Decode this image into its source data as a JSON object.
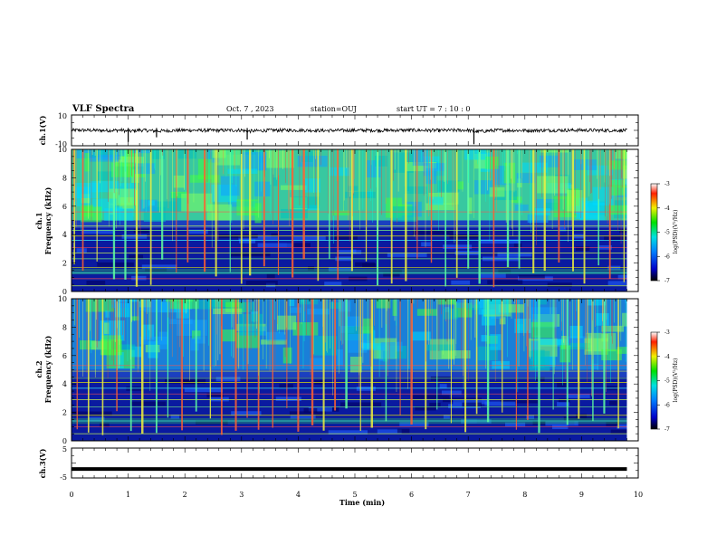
{
  "header": {
    "title": "VLF Spectra",
    "date": "Oct. 7 , 2023",
    "station": "station=OUJ",
    "start": "start UT = 7 : 10 : 0"
  },
  "chart_data": [
    {
      "type": "line",
      "name": "ch1-waveform",
      "ylabel": "ch.1(V)",
      "ylim": [
        -10,
        10
      ],
      "yticks": [
        "10",
        "-10"
      ],
      "x": [
        0.0,
        0.3,
        0.6,
        0.9,
        1.0,
        1.2,
        1.5,
        2.0,
        2.5,
        3.0,
        3.1,
        3.5,
        4.0,
        4.5,
        5.0,
        5.5,
        6.0,
        6.5,
        7.0,
        7.1,
        7.5,
        8.0,
        8.5,
        9.0,
        9.5,
        9.8
      ],
      "y": [
        0.5,
        0.2,
        -0.3,
        0.4,
        -2.5,
        0.6,
        -1.5,
        0.3,
        -0.2,
        0.4,
        -2.0,
        0.1,
        0.3,
        -0.4,
        0.2,
        -0.1,
        0.3,
        -0.2,
        0.5,
        -3.0,
        0.2,
        -0.3,
        0.1,
        0.4,
        -0.2,
        0.0
      ]
    },
    {
      "type": "heatmap",
      "name": "ch1-spectrogram",
      "ylabel_top": "ch.1",
      "ylabel": "Frequency (kHz)",
      "ylim": [
        0,
        10
      ],
      "yticks": [
        "0",
        "2",
        "4",
        "6",
        "8",
        "10"
      ],
      "xlim": [
        0,
        10
      ],
      "colorbar": {
        "label": "log(PSD)(V²/Hz)",
        "range": [
          -7,
          -3
        ],
        "ticks": [
          "-3",
          "-4",
          "-5",
          "-6",
          "-7"
        ]
      },
      "horizontal_lines_khz": [
        0.4,
        0.9,
        1.3,
        1.7,
        2.3,
        2.7,
        3.1,
        3.6,
        3.9,
        4.3,
        4.6,
        5.6
      ],
      "sferic_times_min": [
        0.05,
        0.2,
        0.45,
        0.75,
        0.95,
        1.15,
        1.4,
        1.6,
        1.85,
        2.05,
        2.35,
        2.55,
        2.8,
        3.0,
        3.15,
        3.4,
        3.65,
        3.9,
        4.1,
        4.35,
        4.55,
        4.7,
        4.95,
        5.2,
        5.4,
        5.65,
        5.9,
        6.1,
        6.35,
        6.6,
        6.8,
        7.0,
        7.2,
        7.45,
        7.7,
        7.9,
        8.15,
        8.35,
        8.6,
        8.85,
        9.05,
        9.3,
        9.5,
        9.75
      ]
    },
    {
      "type": "heatmap",
      "name": "ch2-spectrogram",
      "ylabel_top": "ch.2",
      "ylabel": "Frequency (kHz)",
      "ylim": [
        0,
        10
      ],
      "yticks": [
        "0",
        "2",
        "4",
        "6",
        "8",
        "10"
      ],
      "xlim": [
        0,
        10
      ],
      "colorbar": {
        "label": "log(PSD)(V²/Hz)",
        "range": [
          -7,
          -3
        ],
        "ticks": [
          "-3",
          "-4",
          "-5",
          "-6",
          "-7"
        ]
      },
      "horizontal_lines_khz": [
        0.5,
        1.0,
        1.4,
        1.8,
        2.4,
        2.9,
        3.3,
        3.7,
        4.1,
        4.4,
        4.9,
        5.3
      ],
      "sferic_times_min": [
        0.1,
        0.3,
        0.55,
        0.8,
        1.05,
        1.25,
        1.5,
        1.7,
        1.95,
        2.2,
        2.45,
        2.65,
        2.9,
        3.1,
        3.3,
        3.55,
        3.8,
        4.0,
        4.25,
        4.45,
        4.65,
        4.85,
        5.1,
        5.3,
        5.55,
        5.8,
        6.0,
        6.25,
        6.45,
        6.7,
        6.95,
        7.15,
        7.35,
        7.6,
        7.85,
        8.05,
        8.25,
        8.5,
        8.75,
        8.95,
        9.2,
        9.4,
        9.65
      ]
    },
    {
      "type": "line",
      "name": "ch3-waveform",
      "ylabel": "ch.3(V)",
      "ylim": [
        -5,
        5
      ],
      "yticks": [
        "5",
        "-5"
      ],
      "x": [
        0.0,
        9.8
      ],
      "y": [
        -2.0,
        -2.0
      ],
      "xlabel": "Time (min)",
      "xlim": [
        0,
        10
      ],
      "xticks": [
        "0",
        "1",
        "2",
        "3",
        "4",
        "5",
        "6",
        "7",
        "8",
        "9",
        "10"
      ]
    }
  ]
}
